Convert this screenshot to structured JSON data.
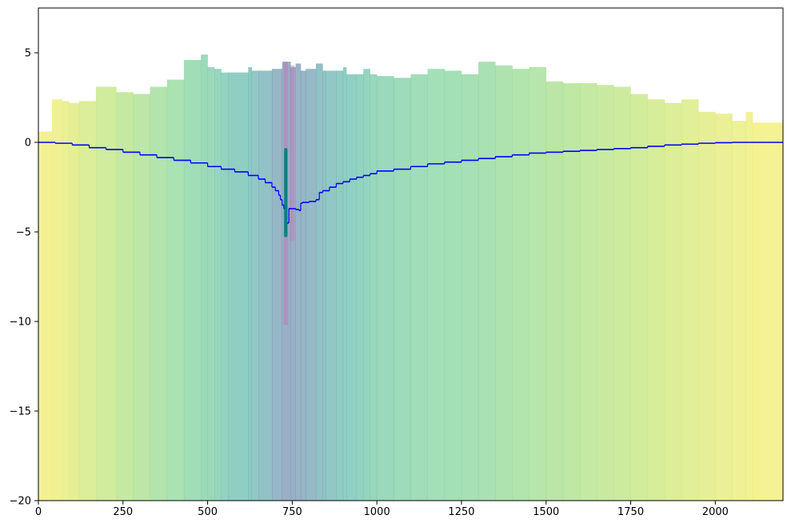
{
  "chart_data": {
    "type": "area",
    "title": "",
    "xlabel": "",
    "ylabel": "",
    "xlim": [
      0,
      2200
    ],
    "ylim": [
      -20,
      7.5
    ],
    "grid": false,
    "legend": "none",
    "x_ticks": [
      0,
      250,
      500,
      750,
      1000,
      1250,
      1500,
      1750,
      2000
    ],
    "y_ticks": [
      5,
      0,
      -5,
      -10,
      -15,
      -20
    ],
    "colors": {
      "colormap": [
        "#fde725",
        "#a0da39",
        "#4ac16d",
        "#1fa187",
        "#277f8e",
        "#365c8d",
        "#46327e"
      ],
      "water_table": "#0000ff",
      "well": "#008080",
      "well_screen": "#c07ab8",
      "axes": "#000000"
    },
    "layer_fill_alpha": 0.5,
    "ground_surface": {
      "x": [
        0,
        40,
        70,
        90,
        120,
        170,
        230,
        280,
        330,
        380,
        430,
        480,
        500,
        520,
        540,
        560,
        620,
        630,
        650,
        690,
        720,
        745,
        760,
        775,
        790,
        820,
        840,
        850,
        880,
        900,
        910,
        940,
        960,
        980,
        1000,
        1050,
        1100,
        1150,
        1200,
        1250,
        1300,
        1350,
        1400,
        1450,
        1500,
        1550,
        1600,
        1650,
        1700,
        1750,
        1800,
        1850,
        1900,
        1950,
        2000,
        2050,
        2090,
        2110,
        2200
      ],
      "y": [
        0.6,
        2.4,
        2.3,
        2.2,
        2.3,
        3.1,
        2.8,
        2.7,
        3.1,
        3.5,
        4.6,
        4.9,
        4.2,
        4.1,
        3.9,
        3.9,
        4.2,
        4.0,
        4.0,
        4.1,
        4.5,
        4.2,
        4.4,
        4.0,
        4.1,
        4.4,
        4.0,
        4.0,
        4.0,
        4.2,
        3.8,
        3.8,
        4.1,
        3.8,
        3.7,
        3.6,
        3.8,
        4.1,
        4.0,
        3.8,
        4.5,
        4.3,
        4.1,
        4.2,
        3.4,
        3.3,
        3.3,
        3.2,
        3.1,
        2.7,
        2.4,
        2.2,
        2.4,
        1.7,
        1.6,
        1.2,
        1.7,
        1.1,
        1.1
      ]
    },
    "bottom": -20,
    "layer_colors": [
      {
        "x": 0,
        "c": 0.02
      },
      {
        "x": 120,
        "c": 0.1
      },
      {
        "x": 220,
        "c": 0.18
      },
      {
        "x": 320,
        "c": 0.25
      },
      {
        "x": 420,
        "c": 0.32
      },
      {
        "x": 500,
        "c": 0.4
      },
      {
        "x": 580,
        "c": 0.5
      },
      {
        "x": 650,
        "c": 0.6
      },
      {
        "x": 700,
        "c": 0.72
      },
      {
        "x": 730,
        "c": 0.82
      },
      {
        "x": 760,
        "c": 0.8
      },
      {
        "x": 800,
        "c": 0.72
      },
      {
        "x": 850,
        "c": 0.6
      },
      {
        "x": 920,
        "c": 0.5
      },
      {
        "x": 1000,
        "c": 0.42
      },
      {
        "x": 1150,
        "c": 0.35
      },
      {
        "x": 1300,
        "c": 0.32
      },
      {
        "x": 1450,
        "c": 0.27
      },
      {
        "x": 1600,
        "c": 0.22
      },
      {
        "x": 1750,
        "c": 0.17
      },
      {
        "x": 1900,
        "c": 0.11
      },
      {
        "x": 2050,
        "c": 0.06
      },
      {
        "x": 2200,
        "c": 0.02
      }
    ],
    "water_table": {
      "x": [
        0,
        50,
        100,
        150,
        200,
        250,
        300,
        350,
        400,
        450,
        500,
        540,
        580,
        620,
        650,
        670,
        690,
        700,
        710,
        715,
        720,
        725,
        728,
        731,
        740,
        750,
        760,
        770,
        775,
        780,
        790,
        800,
        810,
        820,
        830,
        840,
        860,
        880,
        900,
        920,
        940,
        960,
        980,
        1000,
        1050,
        1100,
        1150,
        1200,
        1250,
        1300,
        1350,
        1400,
        1450,
        1500,
        1550,
        1600,
        1650,
        1700,
        1750,
        1800,
        1850,
        1900,
        1950,
        2000,
        2050,
        2100,
        2150,
        2200
      ],
      "y": [
        0.0,
        -0.05,
        -0.15,
        -0.3,
        -0.4,
        -0.55,
        -0.7,
        -0.85,
        -1.0,
        -1.15,
        -1.35,
        -1.5,
        -1.65,
        -1.85,
        -2.05,
        -2.25,
        -2.5,
        -2.7,
        -2.95,
        -3.2,
        -3.5,
        -3.7,
        -4.0,
        -4.5,
        -3.7,
        -3.7,
        -3.75,
        -3.8,
        -3.4,
        -3.35,
        -3.35,
        -3.3,
        -3.3,
        -3.2,
        -2.8,
        -2.7,
        -2.5,
        -2.3,
        -2.2,
        -2.05,
        -1.95,
        -1.85,
        -1.75,
        -1.6,
        -1.5,
        -1.35,
        -1.2,
        -1.1,
        -1.0,
        -0.9,
        -0.8,
        -0.7,
        -0.6,
        -0.55,
        -0.5,
        -0.45,
        -0.4,
        -0.35,
        -0.3,
        -0.22,
        -0.15,
        -0.1,
        -0.05,
        -0.02,
        0.0,
        0.0,
        0.0,
        0.0
      ]
    },
    "well": {
      "x": 731,
      "top": -0.4,
      "bottom": -5.2
    },
    "well_screen": {
      "x": 731,
      "top": 4.5,
      "bottom": -10.2
    },
    "pink_column": {
      "x0": 742,
      "x1": 757,
      "top": 4.3,
      "bottom": -5.5
    }
  }
}
